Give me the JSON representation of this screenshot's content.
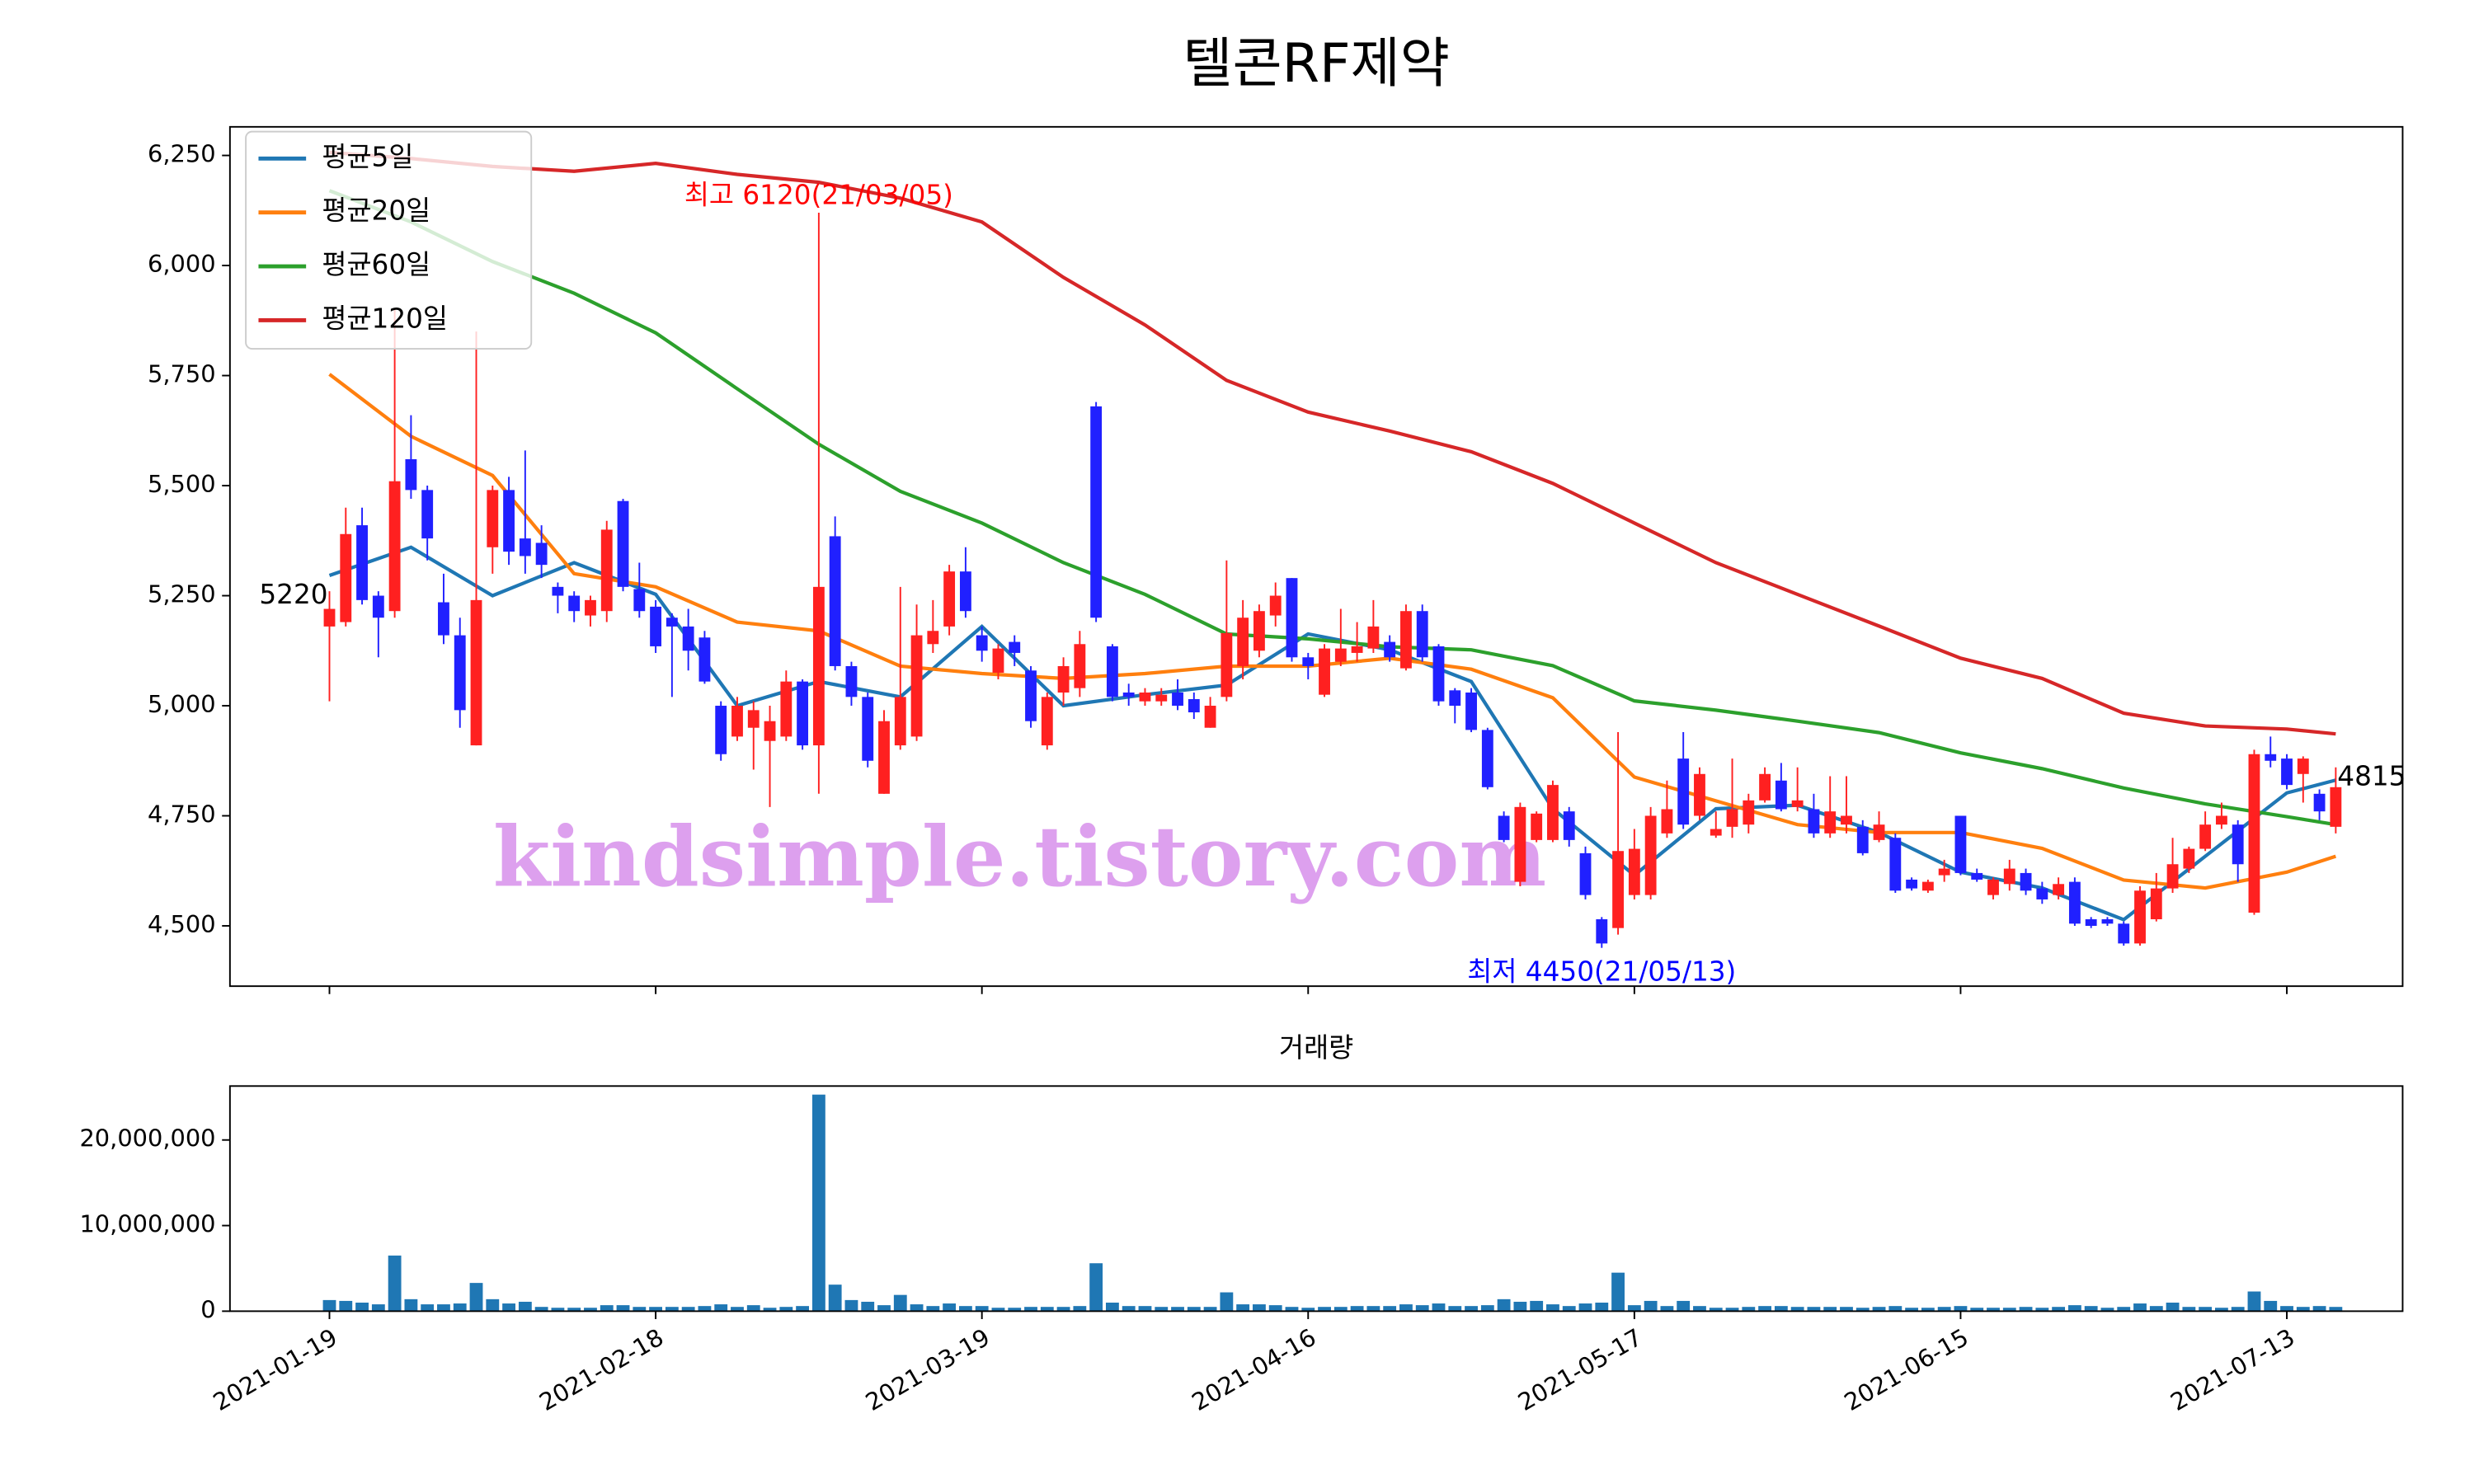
{
  "chart_data": [
    {
      "type": "candlestick",
      "title": "텔콘RF제약",
      "ylim": [
        4363,
        6315
      ],
      "yticks": [
        {
          "value": 4500,
          "label": "4,500"
        },
        {
          "value": 4750,
          "label": "4,750"
        },
        {
          "value": 5000,
          "label": "5,000"
        },
        {
          "value": 5250,
          "label": "5,250"
        },
        {
          "value": 5500,
          "label": "5,500"
        },
        {
          "value": 5750,
          "label": "5,750"
        },
        {
          "value": 6000,
          "label": "6,000"
        },
        {
          "value": 6250,
          "label": "6,250"
        }
      ],
      "xlim": [
        -6.1,
        127.1
      ],
      "up_color": "#ff2020",
      "down_color": "#2020ff",
      "open": [
        5180,
        5190,
        5410,
        5250,
        5215,
        5560,
        5490,
        5235,
        5160,
        4910,
        5360,
        5490,
        5380,
        5370,
        5270,
        5250,
        5205,
        5215,
        5465,
        5265,
        5225,
        5200,
        5180,
        5155,
        5000,
        4930,
        4950,
        4920,
        4930,
        5055,
        4910,
        5385,
        5090,
        5020,
        4800,
        4910,
        4930,
        5140,
        5180,
        5305,
        5160,
        5075,
        5145,
        5080,
        4910,
        5030,
        5040,
        5680,
        5135,
        5030,
        5010,
        5010,
        5030,
        5015,
        4950,
        5020,
        5090,
        5125,
        5205,
        5290,
        5110,
        5025,
        5100,
        5120,
        5130,
        5145,
        5085,
        5215,
        5135,
        5035,
        5030,
        4945,
        4750,
        4600,
        4695,
        4695,
        4760,
        4665,
        4515,
        4495,
        4570,
        4570,
        4710,
        4880,
        4750,
        4705,
        4725,
        4730,
        4785,
        4830,
        4770,
        4765,
        4710,
        4730,
        4725,
        4695,
        4700,
        4605,
        4580,
        4615,
        4750,
        4620,
        4570,
        4595,
        4620,
        4585,
        4570,
        4600,
        4515,
        4515,
        4505,
        4460,
        4515,
        4585,
        4630,
        4675,
        4730,
        4730,
        4530,
        4890,
        4880,
        4845,
        4800,
        4725
      ],
      "high": [
        5260,
        5450,
        5450,
        5260,
        5900,
        5660,
        5500,
        5300,
        5200,
        5850,
        5500,
        5520,
        5580,
        5410,
        5280,
        5260,
        5250,
        5420,
        5470,
        5325,
        5240,
        5210,
        5220,
        5170,
        5010,
        5020,
        5010,
        5000,
        5080,
        5060,
        6120,
        5430,
        5100,
        5030,
        4990,
        5270,
        5230,
        5240,
        5320,
        5360,
        5180,
        5140,
        5160,
        5090,
        5030,
        5110,
        5170,
        5690,
        5140,
        5050,
        5040,
        5040,
        5060,
        5030,
        5020,
        5330,
        5240,
        5230,
        5280,
        5290,
        5120,
        5140,
        5220,
        5190,
        5240,
        5160,
        5230,
        5230,
        5140,
        5040,
        5040,
        4950,
        4760,
        4780,
        4760,
        4830,
        4770,
        4680,
        4520,
        4940,
        4720,
        4770,
        4830,
        4940,
        4860,
        4760,
        4880,
        4800,
        4860,
        4870,
        4860,
        4800,
        4840,
        4840,
        4740,
        4760,
        4710,
        4610,
        4605,
        4650,
        4750,
        4630,
        4610,
        4650,
        4630,
        4600,
        4610,
        4610,
        4520,
        4520,
        4510,
        4590,
        4620,
        4700,
        4680,
        4760,
        4780,
        4740,
        4900,
        4930,
        4890,
        4885,
        4810,
        4860
      ],
      "low": [
        5010,
        5180,
        5230,
        5110,
        5200,
        5470,
        5330,
        5140,
        4950,
        4910,
        5300,
        5320,
        5300,
        5290,
        5210,
        5190,
        5180,
        5190,
        5260,
        5200,
        5120,
        5020,
        5080,
        5050,
        4875,
        4920,
        4855,
        4770,
        4920,
        4900,
        4800,
        5080,
        5000,
        4860,
        4800,
        4900,
        4920,
        5120,
        5160,
        5200,
        5100,
        5060,
        5090,
        4950,
        4900,
        5000,
        5020,
        5190,
        5010,
        5000,
        5000,
        5000,
        4990,
        4970,
        4950,
        5010,
        5060,
        5110,
        5180,
        5100,
        5060,
        5020,
        5090,
        5100,
        5120,
        5100,
        5080,
        5100,
        5000,
        4960,
        4940,
        4810,
        4690,
        4590,
        4690,
        4690,
        4680,
        4560,
        4450,
        4480,
        4560,
        4560,
        4700,
        4720,
        4740,
        4700,
        4700,
        4710,
        4780,
        4760,
        4760,
        4700,
        4700,
        4710,
        4660,
        4690,
        4575,
        4580,
        4575,
        4600,
        4615,
        4600,
        4560,
        4580,
        4570,
        4550,
        4560,
        4500,
        4495,
        4500,
        4455,
        4455,
        4510,
        4575,
        4620,
        4670,
        4720,
        4600,
        4525,
        4860,
        4810,
        4780,
        4740,
        4710
      ],
      "close": [
        5220,
        5390,
        5240,
        5200,
        5510,
        5490,
        5380,
        5160,
        4990,
        5240,
        5490,
        5350,
        5340,
        5320,
        5250,
        5215,
        5240,
        5400,
        5270,
        5215,
        5135,
        5180,
        5125,
        5055,
        4890,
        5000,
        4990,
        4965,
        5055,
        4910,
        5270,
        5090,
        5020,
        4875,
        4965,
        5020,
        5160,
        5170,
        5305,
        5215,
        5125,
        5130,
        5120,
        4965,
        5020,
        5090,
        5140,
        5200,
        5020,
        5020,
        5030,
        5025,
        5000,
        4985,
        5000,
        5165,
        5200,
        5215,
        5250,
        5110,
        5090,
        5130,
        5130,
        5135,
        5180,
        5110,
        5215,
        5110,
        5010,
        5000,
        4945,
        4815,
        4695,
        4770,
        4755,
        4820,
        4695,
        4570,
        4460,
        4670,
        4675,
        4750,
        4765,
        4730,
        4845,
        4720,
        4765,
        4785,
        4845,
        4765,
        4785,
        4710,
        4760,
        4750,
        4665,
        4730,
        4580,
        4585,
        4600,
        4630,
        4620,
        4605,
        4605,
        4630,
        4580,
        4560,
        4595,
        4505,
        4500,
        4505,
        4460,
        4580,
        4585,
        4640,
        4675,
        4730,
        4750,
        4640,
        4890,
        4875,
        4820,
        4880,
        4760,
        4815
      ],
      "series": [
        {
          "name": "평균5일",
          "color": "#1f77b4",
          "x": [
            0,
            5,
            10,
            15,
            20,
            25,
            30,
            35,
            40,
            45,
            50,
            55,
            60,
            65,
            70,
            75,
            80,
            85,
            90,
            95,
            100,
            105,
            110,
            115,
            120,
            123
          ],
          "values": [
            5296,
            5360,
            5250,
            5325,
            5253,
            5000,
            5055,
            5020,
            5180,
            5000,
            5025,
            5047,
            5163,
            5127,
            5055,
            4766,
            4615,
            4766,
            4774,
            4712,
            4622,
            4586,
            4514,
            4658,
            4802,
            4831
          ]
        },
        {
          "name": "평균20일",
          "color": "#ff7f0e",
          "x": [
            0,
            5,
            10,
            15,
            20,
            25,
            30,
            35,
            40,
            45,
            50,
            55,
            60,
            65,
            70,
            75,
            80,
            85,
            90,
            95,
            100,
            105,
            110,
            115,
            120,
            123
          ],
          "values": [
            5753,
            5612,
            5523,
            5300,
            5270,
            5190,
            5170,
            5090,
            5073,
            5062,
            5073,
            5090,
            5090,
            5108,
            5083,
            5018,
            4838,
            4784,
            4730,
            4712,
            4712,
            4676,
            4604,
            4586,
            4622,
            4658
          ]
        },
        {
          "name": "평균60일",
          "color": "#2ca02c",
          "x": [
            0,
            5,
            10,
            15,
            20,
            25,
            30,
            35,
            40,
            45,
            50,
            55,
            60,
            65,
            70,
            75,
            80,
            85,
            90,
            95,
            100,
            105,
            110,
            115,
            120,
            123
          ],
          "values": [
            6170,
            6099,
            6009,
            5937,
            5847,
            5720,
            5594,
            5487,
            5415,
            5325,
            5253,
            5163,
            5152,
            5134,
            5127,
            5091,
            5011,
            4990,
            4965,
            4939,
            4893,
            4857,
            4813,
            4777,
            4748,
            4730
          ]
        },
        {
          "name": "평균120일",
          "color": "#d62728",
          "x": [
            0,
            5,
            10,
            15,
            20,
            25,
            30,
            35,
            40,
            45,
            50,
            55,
            60,
            65,
            70,
            75,
            80,
            85,
            90,
            95,
            100,
            105,
            110,
            115,
            120,
            123
          ],
          "values": [
            6257,
            6243,
            6225,
            6214,
            6232,
            6207,
            6189,
            6153,
            6099,
            5973,
            5865,
            5739,
            5667,
            5624,
            5577,
            5505,
            5415,
            5325,
            5253,
            5181,
            5108,
            5062,
            4983,
            4954,
            4947,
            4936
          ]
        }
      ],
      "legend": "upper left",
      "high_label": {
        "text": "최고 6120(21/03/05)",
        "color": "#ff0000"
      },
      "low_label": {
        "text": "최저 4450(21/05/13)",
        "color": "#0000ff"
      },
      "first_label": {
        "text": "5220",
        "color": "#000000"
      },
      "last_label": {
        "text": "4815",
        "color": "#000000"
      },
      "watermark": "kindsimple.tistory.com",
      "watermark_color": "#dda0ee"
    },
    {
      "type": "bar",
      "title": "거래량",
      "color": "#1f77b4",
      "xlim": [
        -6.1,
        127.1
      ],
      "ylim": [
        0,
        26300000
      ],
      "yticks": [
        0,
        {
          "value": 10000000,
          "label": "10,000,000"
        },
        {
          "value": 20000000,
          "label": "20,000,000"
        }
      ],
      "categories": [
        "2021-01-19",
        null,
        null,
        null,
        null,
        null,
        null,
        null,
        null,
        null,
        null,
        null,
        null,
        null,
        null,
        null,
        null,
        null,
        null,
        null,
        "2021-02-18",
        null,
        null,
        null,
        null,
        null,
        null,
        null,
        null,
        null,
        null,
        null,
        null,
        null,
        null,
        null,
        null,
        null,
        null,
        null,
        "2021-03-19",
        null,
        null,
        null,
        null,
        null,
        null,
        null,
        null,
        null,
        null,
        null,
        null,
        null,
        null,
        null,
        null,
        null,
        null,
        null,
        "2021-04-16",
        null,
        null,
        null,
        null,
        null,
        null,
        null,
        null,
        null,
        null,
        null,
        null,
        null,
        null,
        null,
        null,
        null,
        null,
        null,
        "2021-05-17",
        null,
        null,
        null,
        null,
        null,
        null,
        null,
        null,
        null,
        null,
        null,
        null,
        null,
        null,
        null,
        null,
        null,
        null,
        null,
        "2021-06-15",
        null,
        null,
        null,
        null,
        null,
        null,
        null,
        null,
        null,
        null,
        null,
        null,
        null,
        null,
        null,
        null,
        null,
        null,
        null,
        "2021-07-13",
        null,
        null,
        null
      ],
      "values": [
        1300000,
        1200000,
        1000000,
        800000,
        6500000,
        1400000,
        800000,
        800000,
        900000,
        3300000,
        1400000,
        900000,
        1100000,
        500000,
        400000,
        400000,
        400000,
        700000,
        700000,
        500000,
        500000,
        500000,
        500000,
        600000,
        800000,
        500000,
        700000,
        400000,
        500000,
        600000,
        25300000,
        3100000,
        1300000,
        1100000,
        700000,
        1900000,
        800000,
        600000,
        900000,
        600000,
        600000,
        400000,
        400000,
        500000,
        500000,
        500000,
        600000,
        5600000,
        1000000,
        600000,
        600000,
        500000,
        500000,
        500000,
        500000,
        2200000,
        800000,
        800000,
        700000,
        500000,
        400000,
        500000,
        500000,
        600000,
        600000,
        600000,
        800000,
        700000,
        900000,
        600000,
        600000,
        700000,
        1400000,
        1100000,
        1200000,
        800000,
        600000,
        900000,
        1000000,
        4500000,
        700000,
        1200000,
        600000,
        1200000,
        600000,
        400000,
        400000,
        500000,
        600000,
        600000,
        500000,
        500000,
        500000,
        500000,
        400000,
        500000,
        600000,
        400000,
        400000,
        500000,
        600000,
        400000,
        400000,
        400000,
        500000,
        400000,
        500000,
        700000,
        600000,
        400000,
        500000,
        900000,
        600000,
        1000000,
        500000,
        500000,
        400000,
        500000,
        2300000,
        1200000,
        600000,
        500000,
        600000,
        500000
      ]
    }
  ]
}
